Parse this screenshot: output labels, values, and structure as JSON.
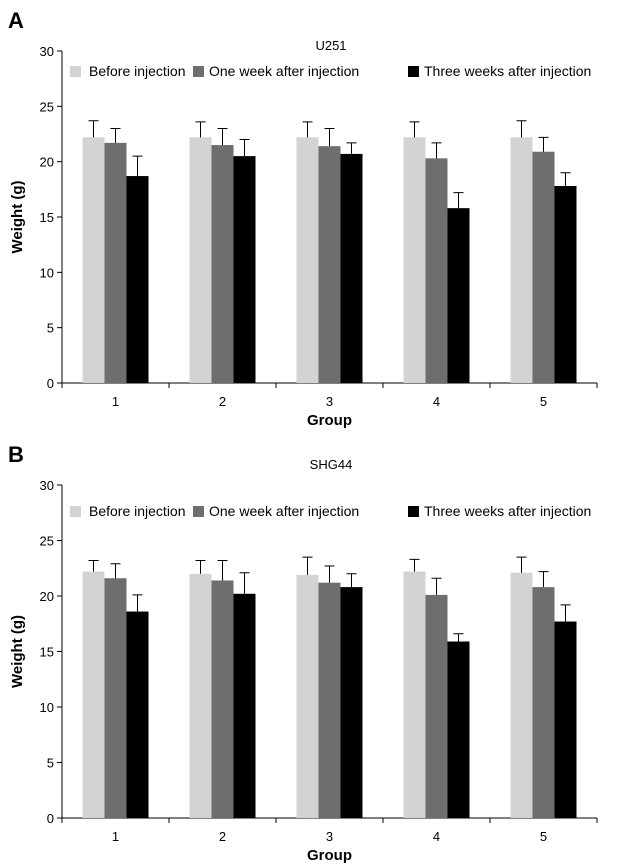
{
  "chart_data": [
    {
      "type": "bar",
      "panel_label": "A",
      "title": "U251",
      "xlabel": "Group",
      "ylabel": "Weight (g)",
      "categories": [
        "1",
        "2",
        "3",
        "4",
        "5"
      ],
      "ylim": [
        0,
        30
      ],
      "yticks": [
        0,
        5,
        10,
        15,
        20,
        25,
        30
      ],
      "legend_position": "top",
      "series": [
        {
          "name": "Before injection",
          "color": "#d3d3d3",
          "values": [
            22.2,
            22.2,
            22.2,
            22.2,
            22.2
          ],
          "errors": [
            1.5,
            1.4,
            1.4,
            1.4,
            1.5
          ]
        },
        {
          "name": "One week after injection",
          "color": "#6e6e6e",
          "values": [
            21.7,
            21.5,
            21.4,
            20.3,
            20.9
          ],
          "errors": [
            1.3,
            1.5,
            1.6,
            1.4,
            1.3
          ]
        },
        {
          "name": "Three weeks after injection",
          "color": "#000000",
          "values": [
            18.7,
            20.5,
            20.7,
            15.8,
            17.8
          ],
          "errors": [
            1.8,
            1.5,
            1.0,
            1.4,
            1.2
          ]
        }
      ]
    },
    {
      "type": "bar",
      "panel_label": "B",
      "title": "SHG44",
      "xlabel": "Group",
      "ylabel": "Weight (g)",
      "categories": [
        "1",
        "2",
        "3",
        "4",
        "5"
      ],
      "ylim": [
        0,
        30
      ],
      "yticks": [
        0,
        5,
        10,
        15,
        20,
        25,
        30
      ],
      "legend_position": "top",
      "series": [
        {
          "name": "Before injection",
          "color": "#d3d3d3",
          "values": [
            22.2,
            22.0,
            21.9,
            22.2,
            22.1
          ],
          "errors": [
            1.0,
            1.2,
            1.6,
            1.1,
            1.4
          ]
        },
        {
          "name": "One week after injection",
          "color": "#6e6e6e",
          "values": [
            21.6,
            21.4,
            21.2,
            20.1,
            20.8
          ],
          "errors": [
            1.3,
            1.8,
            1.5,
            1.5,
            1.4
          ]
        },
        {
          "name": "Three weeks after injection",
          "color": "#000000",
          "values": [
            18.6,
            20.2,
            20.8,
            15.9,
            17.7
          ],
          "errors": [
            1.5,
            1.9,
            1.2,
            0.7,
            1.5
          ]
        }
      ]
    }
  ]
}
